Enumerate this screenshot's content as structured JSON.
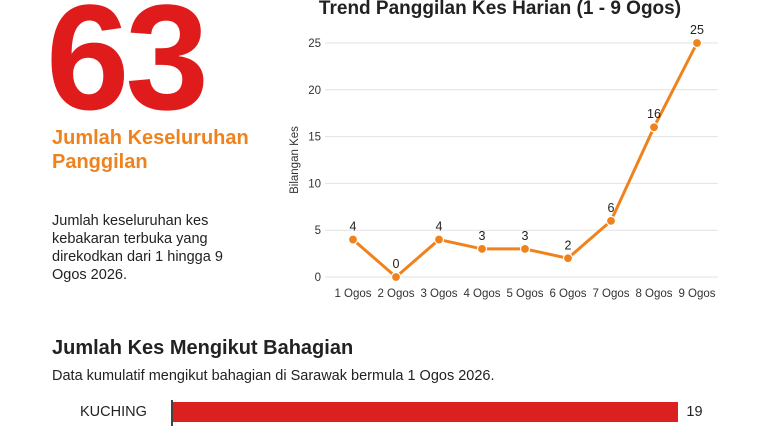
{
  "summary": {
    "total": "63",
    "total_label": "Jumlah Keseluruhan Panggilan",
    "description": "Jumlah keseluruhan kes kebakaran terbuka yang direkodkan dari 1 hingga 9 Ogos 2026."
  },
  "chart_data": [
    {
      "type": "line",
      "title": "Trend Panggilan Kes Harian (1 - 9 Ogos)",
      "ylabel": "Bilangan Kes",
      "xlabel": "",
      "categories": [
        "1 Ogos",
        "2 Ogos",
        "3 Ogos",
        "4 Ogos",
        "5 Ogos",
        "6 Ogos",
        "7 Ogos",
        "8 Ogos",
        "9 Ogos"
      ],
      "values": [
        4,
        0,
        4,
        3,
        3,
        2,
        6,
        16,
        25
      ],
      "ylim": [
        0,
        25
      ],
      "yticks": [
        0,
        5,
        10,
        15,
        20,
        25
      ],
      "grid": true,
      "color": "#f0821e"
    },
    {
      "type": "bar",
      "title": "Jumlah Kes Mengikut Bahagian",
      "subtitle": "Data kumulatif mengikut bahagian di Sarawak bermula 1 Ogos 2026.",
      "categories": [
        "KUCHING"
      ],
      "values": [
        19
      ],
      "color": "#dc1f1f"
    }
  ]
}
